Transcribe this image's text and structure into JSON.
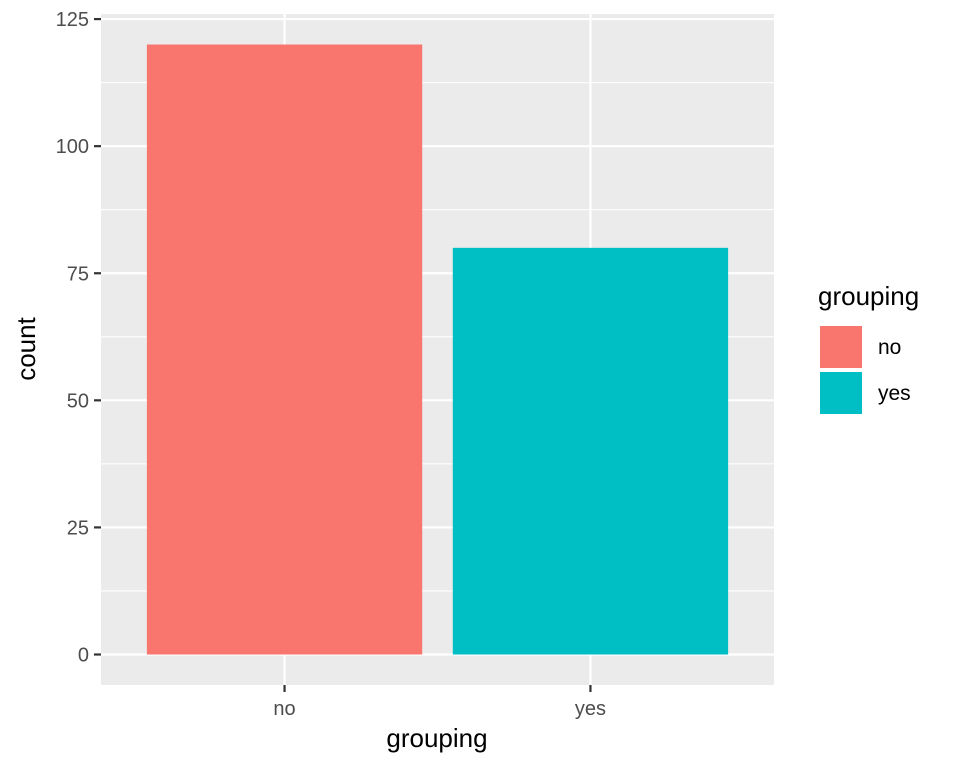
{
  "chart_data": {
    "type": "bar",
    "categories": [
      "no",
      "yes"
    ],
    "values": [
      120,
      80
    ],
    "colors": [
      "#F8766D",
      "#00BFC4"
    ],
    "title": "",
    "xlabel": "grouping",
    "ylabel": "count",
    "ylim": [
      -6,
      126
    ],
    "yticks": [
      0,
      25,
      50,
      75,
      100,
      125
    ],
    "ytick_labels": [
      "0",
      "25",
      "50",
      "75",
      "100",
      "125"
    ],
    "grid": true,
    "panel_background": "#EBEBEB",
    "grid_color": "#FFFFFF",
    "legend": {
      "title": "grouping",
      "placement": "right",
      "entries": [
        {
          "label": "no",
          "color": "#F8766D"
        },
        {
          "label": "yes",
          "color": "#00BFC4"
        }
      ]
    }
  }
}
